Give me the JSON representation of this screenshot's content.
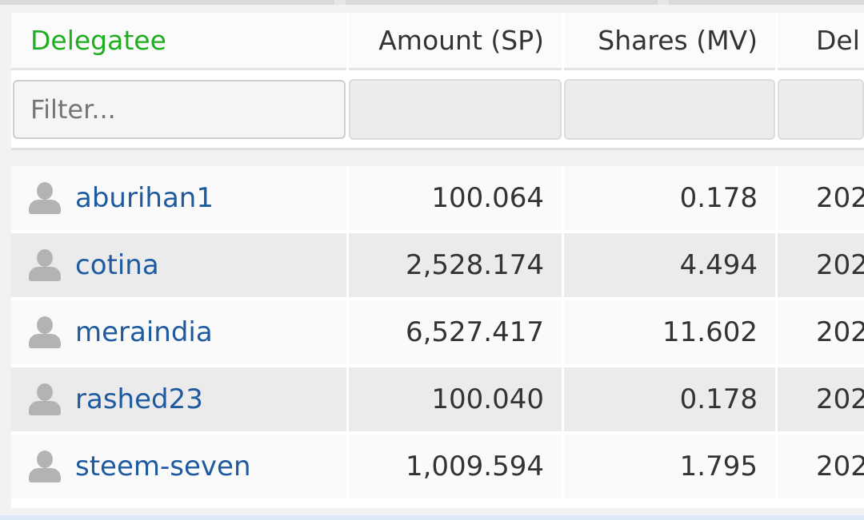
{
  "table": {
    "columns": {
      "delegatee": "Delegatee",
      "amount": "Amount (SP)",
      "shares": "Shares (MV)",
      "date": "Del"
    },
    "filter": {
      "placeholder": "Filter...",
      "value": ""
    },
    "rows": [
      {
        "user": "aburihan1",
        "amount": "100.064",
        "shares": "0.178",
        "date": "202"
      },
      {
        "user": "cotina",
        "amount": "2,528.174",
        "shares": "4.494",
        "date": "202"
      },
      {
        "user": "meraindia",
        "amount": "6,527.417",
        "shares": "11.602",
        "date": "202"
      },
      {
        "user": "rashed23",
        "amount": "100.040",
        "shares": "0.178",
        "date": "202"
      },
      {
        "user": "steem-seven",
        "amount": "1,009.594",
        "shares": "1.795",
        "date": "202"
      }
    ]
  },
  "colors": {
    "sorted_header": "#1fae1f",
    "link": "#1e5aa0",
    "text": "#333333"
  },
  "icons": {
    "user_avatar": "user-icon"
  }
}
